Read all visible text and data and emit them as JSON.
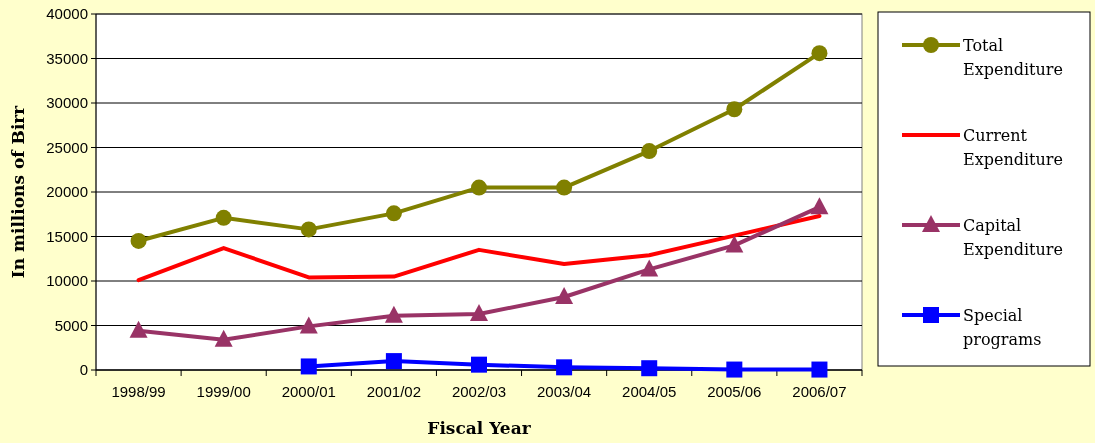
{
  "chart_data": {
    "type": "line",
    "xlabel": "Fiscal Year",
    "ylabel": "In millions of Birr",
    "categories": [
      "1998/99",
      "1999/00",
      "2000/01",
      "2001/02",
      "2002/03",
      "2003/04",
      "2004/05",
      "2005/06",
      "2006/07"
    ],
    "series": [
      {
        "name": "Total Expenditure",
        "color": "#808000",
        "marker": "circle",
        "values": [
          14500,
          17100,
          15800,
          17600,
          20500,
          20500,
          24600,
          29300,
          35600
        ]
      },
      {
        "name": "Current Expenditure",
        "color": "#ff0000",
        "marker": "none",
        "values": [
          10100,
          13700,
          10400,
          10500,
          13500,
          11900,
          12900,
          15100,
          17300
        ]
      },
      {
        "name": "Capital Expenditure",
        "color": "#993366",
        "marker": "triangle",
        "values": [
          4400,
          3400,
          4900,
          6100,
          6300,
          8200,
          11300,
          14000,
          18300
        ]
      },
      {
        "name": "Special programs",
        "color": "#0000ff",
        "marker": "square",
        "values": [
          null,
          null,
          400,
          1000,
          600,
          300,
          200,
          50,
          50
        ]
      }
    ],
    "ylim": [
      0,
      40000
    ],
    "yticks": [
      0,
      5000,
      10000,
      15000,
      20000,
      25000,
      30000,
      35000,
      40000
    ],
    "grid": "y",
    "legend": "right"
  }
}
